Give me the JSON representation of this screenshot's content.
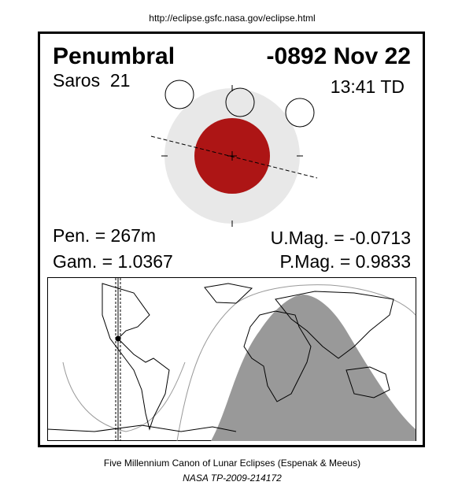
{
  "header": {
    "url": "http://eclipse.gsfc.nasa.gov/eclipse.html"
  },
  "eclipse": {
    "type": "Penumbral",
    "date": "-0892 Nov 22",
    "saros": "Saros  21",
    "time": "13:41 TD",
    "pen": "Pen. = 267m",
    "gam": "Gam. = 1.0367",
    "umag": "U.Mag. = -0.0713",
    "pmag": "P.Mag. = 0.9833"
  },
  "footer": {
    "line1": "Five Millennium Canon of Lunar Eclipses (Espenak & Meeus)",
    "line2": "NASA TP-2009-214172"
  }
}
